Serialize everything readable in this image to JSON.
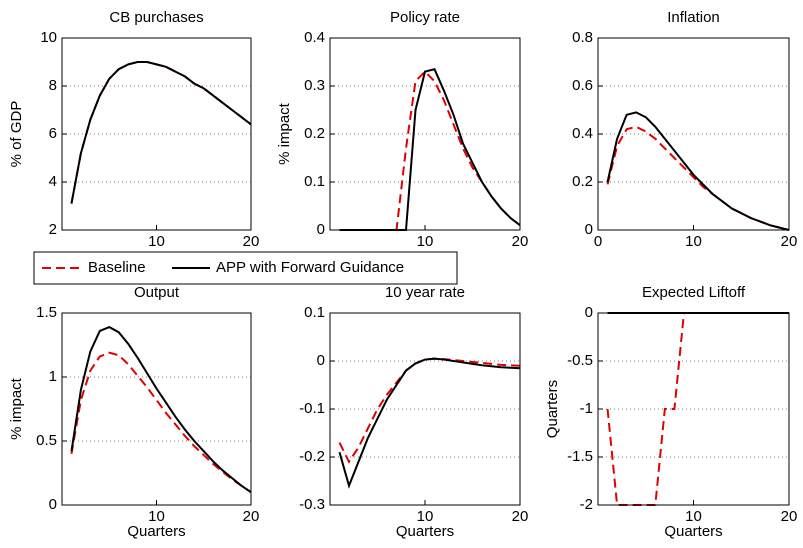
{
  "chart_data": [
    {
      "type": "line",
      "title": "CB purchases",
      "ylabel": "% of GDP",
      "x": [
        1,
        2,
        3,
        4,
        5,
        6,
        7,
        8,
        9,
        10,
        11,
        12,
        13,
        14,
        15,
        16,
        17,
        18,
        19,
        20
      ],
      "xlim": [
        0,
        20
      ],
      "xticks": [
        10,
        20
      ],
      "ylim": [
        2,
        10
      ],
      "yticks": [
        2,
        4,
        6,
        8,
        10
      ],
      "grid": true,
      "series": [
        {
          "name": "Baseline",
          "color": "#e00000",
          "linestyle": "dashed",
          "values": [
            3.1,
            5.2,
            6.6,
            7.6,
            8.3,
            8.7,
            8.9,
            9.0,
            9.0,
            8.9,
            8.8,
            8.6,
            8.4,
            8.1,
            7.9,
            7.6,
            7.3,
            7.0,
            6.7,
            6.4
          ]
        },
        {
          "name": "APP with Forward Guidance",
          "color": "#000000",
          "linestyle": "solid",
          "values": [
            3.1,
            5.2,
            6.6,
            7.6,
            8.3,
            8.7,
            8.9,
            9.0,
            9.0,
            8.9,
            8.8,
            8.6,
            8.4,
            8.1,
            7.9,
            7.6,
            7.3,
            7.0,
            6.7,
            6.4
          ]
        }
      ]
    },
    {
      "type": "line",
      "title": "Policy rate",
      "ylabel": "% impact",
      "x": [
        1,
        2,
        3,
        4,
        5,
        6,
        7,
        8,
        9,
        10,
        11,
        12,
        13,
        14,
        15,
        16,
        17,
        18,
        19,
        20
      ],
      "xlim": [
        0,
        20
      ],
      "xticks": [
        10,
        20
      ],
      "ylim": [
        0,
        0.4
      ],
      "yticks": [
        0,
        0.1,
        0.2,
        0.3,
        0.4
      ],
      "grid": true,
      "series": [
        {
          "name": "Baseline",
          "color": "#e00000",
          "linestyle": "dashed",
          "values": [
            0,
            0,
            0,
            0,
            0,
            0,
            0,
            0.17,
            0.31,
            0.33,
            0.31,
            0.27,
            0.22,
            0.17,
            0.13,
            0.1,
            0.07,
            0.045,
            0.025,
            0.01
          ]
        },
        {
          "name": "APP with Forward Guidance",
          "color": "#000000",
          "linestyle": "solid",
          "values": [
            0,
            0,
            0,
            0,
            0,
            0,
            0,
            0,
            0.25,
            0.33,
            0.335,
            0.29,
            0.24,
            0.18,
            0.14,
            0.1,
            0.07,
            0.045,
            0.025,
            0.01
          ]
        }
      ]
    },
    {
      "type": "line",
      "title": "Inflation",
      "x": [
        1,
        2,
        3,
        4,
        5,
        6,
        7,
        8,
        9,
        10,
        11,
        12,
        13,
        14,
        15,
        16,
        17,
        18,
        19,
        20
      ],
      "xlim": [
        0,
        20
      ],
      "xticks": [
        0,
        10,
        20
      ],
      "ylim": [
        0,
        0.8
      ],
      "yticks": [
        0,
        0.2,
        0.4,
        0.6,
        0.8
      ],
      "grid": true,
      "series": [
        {
          "name": "Baseline",
          "color": "#e00000",
          "linestyle": "dashed",
          "values": [
            0.19,
            0.35,
            0.42,
            0.43,
            0.41,
            0.38,
            0.34,
            0.3,
            0.26,
            0.22,
            0.18,
            0.15,
            0.12,
            0.09,
            0.07,
            0.05,
            0.035,
            0.02,
            0.01,
            0
          ]
        },
        {
          "name": "APP with Forward Guidance",
          "color": "#000000",
          "linestyle": "solid",
          "values": [
            0.2,
            0.38,
            0.48,
            0.49,
            0.47,
            0.43,
            0.38,
            0.33,
            0.28,
            0.23,
            0.19,
            0.15,
            0.12,
            0.09,
            0.07,
            0.05,
            0.035,
            0.02,
            0.01,
            0
          ]
        }
      ]
    },
    {
      "type": "line",
      "title": "Output",
      "ylabel": "% impact",
      "xlabel": "Quarters",
      "x": [
        1,
        2,
        3,
        4,
        5,
        6,
        7,
        8,
        9,
        10,
        11,
        12,
        13,
        14,
        15,
        16,
        17,
        18,
        19,
        20
      ],
      "xlim": [
        0,
        20
      ],
      "xticks": [
        10,
        20
      ],
      "ylim": [
        0,
        1.5
      ],
      "yticks": [
        0,
        0.5,
        1,
        1.5
      ],
      "grid": true,
      "series": [
        {
          "name": "Baseline",
          "color": "#e00000",
          "linestyle": "dashed",
          "values": [
            0.4,
            0.82,
            1.05,
            1.16,
            1.19,
            1.17,
            1.1,
            1.01,
            0.92,
            0.82,
            0.72,
            0.63,
            0.54,
            0.46,
            0.39,
            0.32,
            0.26,
            0.2,
            0.15,
            0.1
          ]
        },
        {
          "name": "APP with Forward Guidance",
          "color": "#000000",
          "linestyle": "solid",
          "values": [
            0.42,
            0.9,
            1.2,
            1.36,
            1.39,
            1.35,
            1.26,
            1.15,
            1.03,
            0.91,
            0.8,
            0.69,
            0.59,
            0.5,
            0.42,
            0.34,
            0.27,
            0.21,
            0.15,
            0.1
          ]
        }
      ]
    },
    {
      "type": "line",
      "title": "10 year rate",
      "xlabel": "Quarters",
      "x": [
        1,
        2,
        3,
        4,
        5,
        6,
        7,
        8,
        9,
        10,
        11,
        12,
        13,
        14,
        15,
        16,
        17,
        18,
        19,
        20
      ],
      "xlim": [
        0,
        20
      ],
      "xticks": [
        10,
        20
      ],
      "ylim": [
        -0.3,
        0.1
      ],
      "yticks": [
        -0.3,
        -0.2,
        -0.1,
        0,
        0.1
      ],
      "grid": true,
      "series": [
        {
          "name": "Baseline",
          "color": "#e00000",
          "linestyle": "dashed",
          "values": [
            -0.17,
            -0.21,
            -0.18,
            -0.14,
            -0.1,
            -0.07,
            -0.045,
            -0.02,
            -0.005,
            0.003,
            0.005,
            0.004,
            0.002,
            0,
            -0.002,
            -0.004,
            -0.006,
            -0.008,
            -0.009,
            -0.01
          ]
        },
        {
          "name": "APP with Forward Guidance",
          "color": "#000000",
          "linestyle": "solid",
          "values": [
            -0.19,
            -0.26,
            -0.21,
            -0.16,
            -0.12,
            -0.08,
            -0.05,
            -0.02,
            -0.005,
            0.003,
            0.005,
            0.003,
            0,
            -0.003,
            -0.006,
            -0.009,
            -0.011,
            -0.013,
            -0.014,
            -0.015
          ]
        }
      ]
    },
    {
      "type": "line",
      "title": "Expected Liftoff",
      "ylabel": "Quarters",
      "xlabel": "Quarters",
      "x": [
        1,
        2,
        3,
        4,
        5,
        6,
        7,
        8,
        9,
        10,
        11,
        12,
        13,
        14,
        15,
        16,
        17,
        18,
        19,
        20
      ],
      "xlim": [
        0,
        20
      ],
      "xticks": [
        10,
        20
      ],
      "ylim": [
        -2,
        0
      ],
      "yticks": [
        -2,
        -1.5,
        -1,
        -0.5,
        0
      ],
      "grid": true,
      "series": [
        {
          "name": "Baseline",
          "color": "#e00000",
          "linestyle": "dashed",
          "values": [
            -1,
            -2,
            -2,
            -2,
            -2,
            -2,
            -1,
            -1,
            0,
            0,
            0,
            0,
            0,
            0,
            0,
            0,
            0,
            0,
            0,
            0
          ]
        },
        {
          "name": "APP with Forward Guidance",
          "color": "#000000",
          "linestyle": "solid",
          "values": [
            0,
            0,
            0,
            0,
            0,
            0,
            0,
            0,
            0,
            0,
            0,
            0,
            0,
            0,
            0,
            0,
            0,
            0,
            0,
            0
          ]
        }
      ]
    }
  ]
}
